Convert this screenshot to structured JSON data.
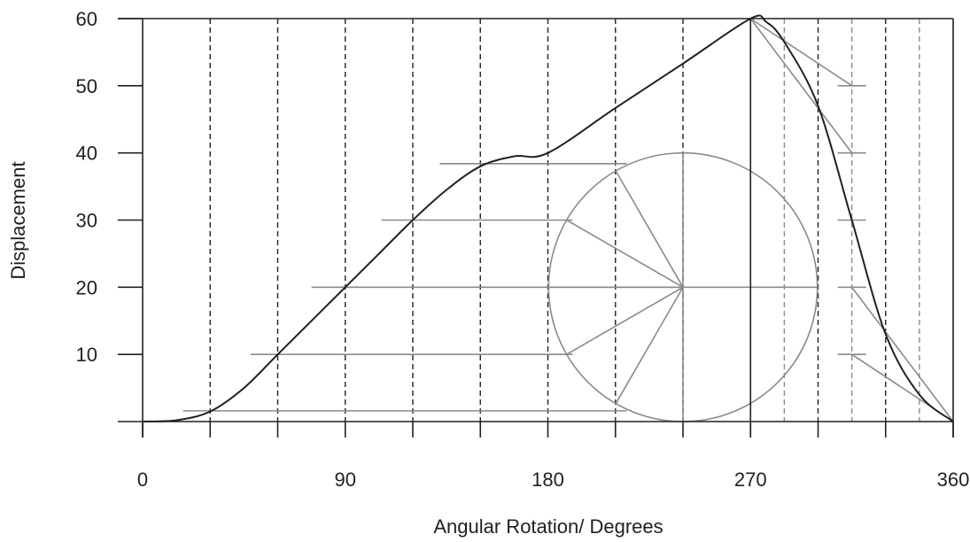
{
  "chart_data": {
    "type": "line",
    "title": "",
    "xlabel": "Angular Rotation/ Degrees",
    "ylabel": "Displacement",
    "xlim": [
      0,
      360
    ],
    "ylim": [
      0,
      60
    ],
    "x_ticks": [
      0,
      90,
      180,
      270,
      360
    ],
    "x_tick_labels": [
      "0",
      "90",
      "180",
      "270",
      "360"
    ],
    "y_ticks": [
      10,
      20,
      30,
      40,
      50,
      60
    ],
    "y_tick_labels": [
      "10",
      "20",
      "30",
      "40",
      "50",
      "60"
    ],
    "x_division_ticks": [
      0,
      30,
      60,
      90,
      120,
      150,
      180,
      210,
      240,
      270,
      300,
      330,
      360
    ],
    "grid": "vertical dashed lines every 30 degrees plus extra lines at 285, 315 and 345 degrees",
    "colors": {
      "curve": "#231f20",
      "construction": "#8a8a8a",
      "grid_dark": "#231f20",
      "grid_light": "#8a8a8a"
    },
    "series": [
      {
        "points": [
          [
            0,
            0
          ],
          [
            15,
            0.2
          ],
          [
            30,
            1.5
          ],
          [
            45,
            5
          ],
          [
            60,
            10
          ],
          [
            75,
            15
          ],
          [
            90,
            20
          ],
          [
            105,
            25
          ],
          [
            120,
            30
          ],
          [
            135,
            34.5
          ],
          [
            150,
            38
          ],
          [
            165,
            39.5
          ],
          [
            180,
            40
          ],
          [
            210,
            46.7
          ],
          [
            240,
            53.3
          ],
          [
            270,
            60
          ],
          [
            277,
            59.5
          ],
          [
            285,
            56.5
          ],
          [
            300,
            47
          ],
          [
            315,
            30
          ],
          [
            330,
            13
          ],
          [
            345,
            4
          ],
          [
            360,
            0
          ]
        ]
      }
    ],
    "construction": {
      "lift_circle": {
        "center": [
          240,
          20
        ],
        "radius_y": 20
      },
      "radial_angles_deg": [
        -90,
        -60,
        -30,
        0,
        30,
        60,
        90
      ],
      "projection_lines": [
        {
          "y": 1.6,
          "x_start": 18,
          "x_end": 215
        },
        {
          "y": 10,
          "x_start": 48,
          "x_end": 191
        },
        {
          "y": 20,
          "x_start": 75,
          "x_end": 300
        },
        {
          "y": 30,
          "x_start": 106,
          "x_end": 191
        },
        {
          "y": 38.4,
          "x_start": 132,
          "x_end": 215
        }
      ],
      "return_fan_apex": [
        270,
        60
      ],
      "return_fan_ticks": [
        {
          "x": 315,
          "y": 50
        },
        {
          "x": 315,
          "y": 40
        },
        {
          "x": 315,
          "y": 30
        },
        {
          "x": 315,
          "y": 20
        },
        {
          "x": 315,
          "y": 10
        }
      ],
      "return_fan_edges": [
        [
          [
            270,
            60
          ],
          [
            315,
            50
          ]
        ],
        [
          [
            270,
            60
          ],
          [
            315,
            40
          ]
        ],
        [
          [
            315,
            20
          ],
          [
            360,
            0
          ]
        ],
        [
          [
            315,
            10
          ],
          [
            360,
            0
          ]
        ]
      ]
    }
  }
}
